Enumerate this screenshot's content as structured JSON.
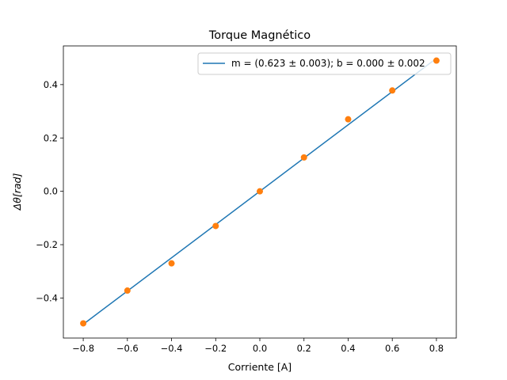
{
  "chart_data": {
    "type": "scatter",
    "title": "Torque Magnético",
    "xlabel": "Corriente [A]",
    "ylabel": "Δθ[rad]",
    "xlim": [
      -0.89,
      0.89
    ],
    "ylim": [
      -0.55,
      0.545
    ],
    "xticks": [
      -0.8,
      -0.6,
      -0.4,
      -0.2,
      0.0,
      0.2,
      0.4,
      0.6,
      0.8
    ],
    "xtick_labels": [
      "−0.8",
      "−0.6",
      "−0.4",
      "−0.2",
      "0.0",
      "0.2",
      "0.4",
      "0.6",
      "0.8"
    ],
    "yticks": [
      -0.4,
      -0.2,
      0.0,
      0.2,
      0.4
    ],
    "ytick_labels": [
      "−0.4",
      "−0.2",
      "0.0",
      "0.2",
      "0.4"
    ],
    "grid": false,
    "legend_position": "top-right",
    "series": [
      {
        "name": "m = (0.623 ± 0.003); b = 0.000 ± 0.002",
        "kind": "line",
        "color": "#1f77b4",
        "x": [
          -0.8,
          0.8
        ],
        "y": [
          -0.4984,
          0.4984
        ]
      },
      {
        "kind": "scatter",
        "color": "#ff7f0e",
        "x": [
          -0.8,
          -0.6,
          -0.4,
          -0.2,
          0.0,
          0.2,
          0.4,
          0.6,
          0.8
        ],
        "y": [
          -0.495,
          -0.372,
          -0.27,
          -0.13,
          0.0,
          0.127,
          0.27,
          0.378,
          0.49
        ]
      }
    ]
  }
}
